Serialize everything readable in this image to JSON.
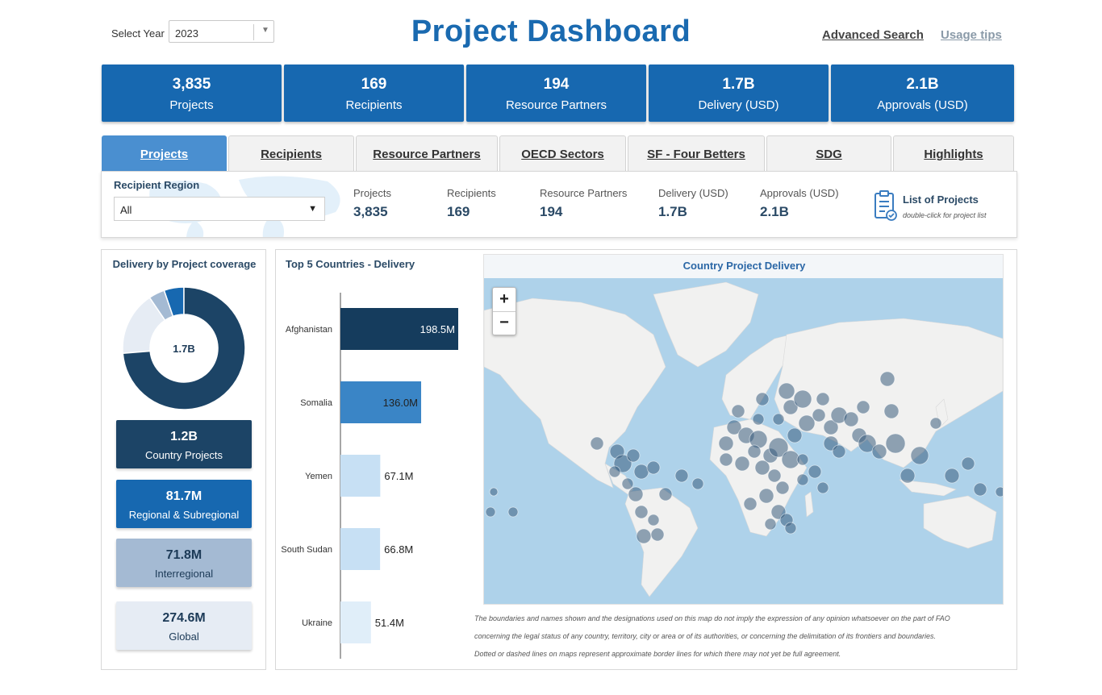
{
  "header": {
    "year_label": "Select Year",
    "year_value": "2023",
    "title": "Project Dashboard",
    "advanced_search": "Advanced Search",
    "usage_tips": "Usage tips"
  },
  "kpis": [
    {
      "value": "3,835",
      "label": "Projects"
    },
    {
      "value": "169",
      "label": "Recipients"
    },
    {
      "value": "194",
      "label": "Resource Partners"
    },
    {
      "value": "1.7B",
      "label": "Delivery (USD)"
    },
    {
      "value": "2.1B",
      "label": "Approvals (USD)"
    }
  ],
  "tabs": [
    {
      "label": "Projects",
      "active": true
    },
    {
      "label": "Recipients",
      "active": false
    },
    {
      "label": "Resource Partners",
      "active": false
    },
    {
      "label": "OECD Sectors",
      "active": false
    },
    {
      "label": "SF - Four Betters",
      "active": false
    },
    {
      "label": "SDG",
      "active": false
    },
    {
      "label": "Highlights",
      "active": false
    }
  ],
  "filter": {
    "region_label": "Recipient Region",
    "region_value": "All",
    "stats": [
      {
        "label": "Projects",
        "value": "3,835"
      },
      {
        "label": "Recipients",
        "value": "169"
      },
      {
        "label": "Resource Partners",
        "value": "194"
      },
      {
        "label": "Delivery (USD)",
        "value": "1.7B"
      },
      {
        "label": "Approvals (USD)",
        "value": "2.1B"
      }
    ],
    "list_title": "List of Projects",
    "list_hint": "double-click for project list"
  },
  "coverage": {
    "title": "Delivery by Project coverage",
    "center_label": "1.7B",
    "colors": {
      "country": "#1c4466",
      "regional": "#1768b0",
      "interregional": "#a4bad3",
      "global": "#e6ecf4"
    },
    "tiles": [
      {
        "key": "country",
        "value": "1.2B",
        "label": "Country Projects",
        "share": 0.7,
        "bg": "#1c4466",
        "fg": "#ffffff"
      },
      {
        "key": "regional",
        "value": "81.7M",
        "label": "Regional & Subregional",
        "share": 0.05,
        "bg": "#1768b0",
        "fg": "#ffffff"
      },
      {
        "key": "interregional",
        "value": "71.8M",
        "label": "Interregional",
        "share": 0.04,
        "bg": "#a4bad3",
        "fg": "#1c3a57"
      },
      {
        "key": "global",
        "value": "274.6M",
        "label": "Global",
        "share": 0.16,
        "bg": "#e6ecf4",
        "fg": "#1c3a57"
      }
    ]
  },
  "chart_data": {
    "type": "bar",
    "orientation": "horizontal",
    "title": "Top 5 Countries - Delivery",
    "categories": [
      "Afghanistan",
      "Somalia",
      "Yemen",
      "South Sudan",
      "Ukraine"
    ],
    "values": [
      198.5,
      136.0,
      67.1,
      66.8,
      51.4
    ],
    "value_labels": [
      "198.5M",
      "136.0M",
      "67.1M",
      "66.8M",
      "51.4M"
    ],
    "bar_colors": [
      "#153c5d",
      "#3a85c6",
      "#c7e0f4",
      "#c7e0f4",
      "#e0eef9"
    ]
  },
  "map": {
    "title": "Country Project Delivery",
    "zoom_in": "+",
    "zoom_out": "−",
    "disclaimer": [
      "The boundaries and names shown and the designations used on this map do not imply the expression of any opinion whatsoever on the part of FAO",
      "concerning the legal status of any country, territory, city or area or of its authorities, or concerning the delimitation of its frontiers and boundaries.",
      "Dotted or dashed lines on maps represent approximate border lines for which there may not yet be full agreement."
    ]
  }
}
